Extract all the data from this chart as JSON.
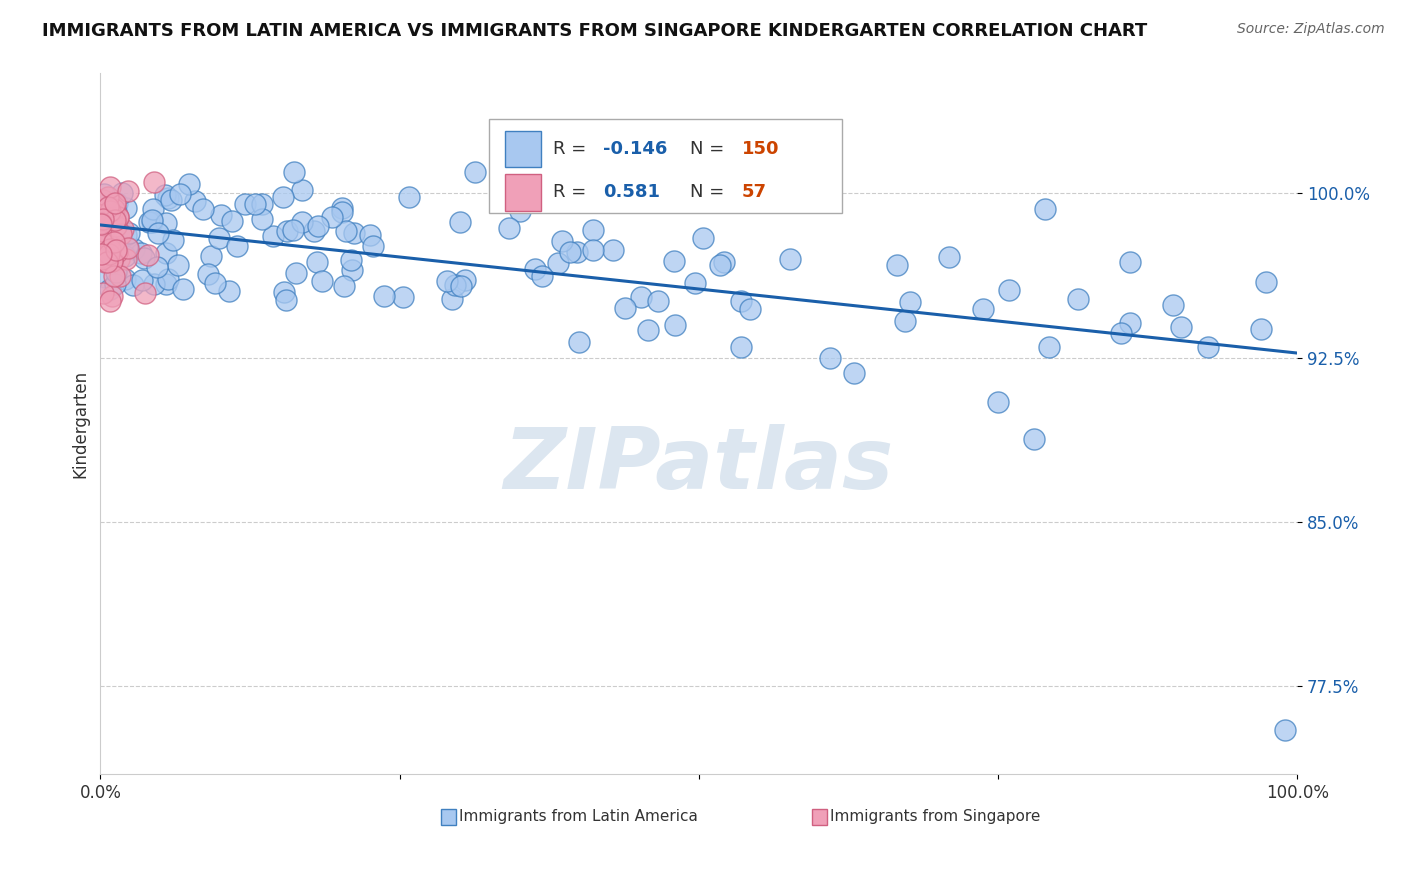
{
  "title": "IMMIGRANTS FROM LATIN AMERICA VS IMMIGRANTS FROM SINGAPORE KINDERGARTEN CORRELATION CHART",
  "source_text": "Source: ZipAtlas.com",
  "ylabel": "Kindergarten",
  "x_min": 0.0,
  "x_max": 1.0,
  "y_min": 0.735,
  "y_max": 1.055,
  "y_ticks": [
    0.775,
    0.85,
    0.925,
    1.0
  ],
  "y_tick_labels": [
    "77.5%",
    "85.0%",
    "92.5%",
    "100.0%"
  ],
  "x_ticks": [
    0.0,
    0.25,
    0.5,
    0.75,
    1.0
  ],
  "x_tick_labels": [
    "0.0%",
    "",
    "",
    "",
    "100.0%"
  ],
  "legend_r_blue": "-0.146",
  "legend_n_blue": "150",
  "legend_r_pink": "0.581",
  "legend_n_pink": "57",
  "blue_color": "#a8c8f0",
  "blue_edge": "#4080c0",
  "pink_color": "#f0a0b8",
  "pink_edge": "#d06080",
  "trendline_color": "#1a5faa",
  "watermark_color": "#dce6f0",
  "legend_r_color": "#1a5faa",
  "legend_n_color": "#cc4400",
  "title_fontsize": 13,
  "seed": 42
}
